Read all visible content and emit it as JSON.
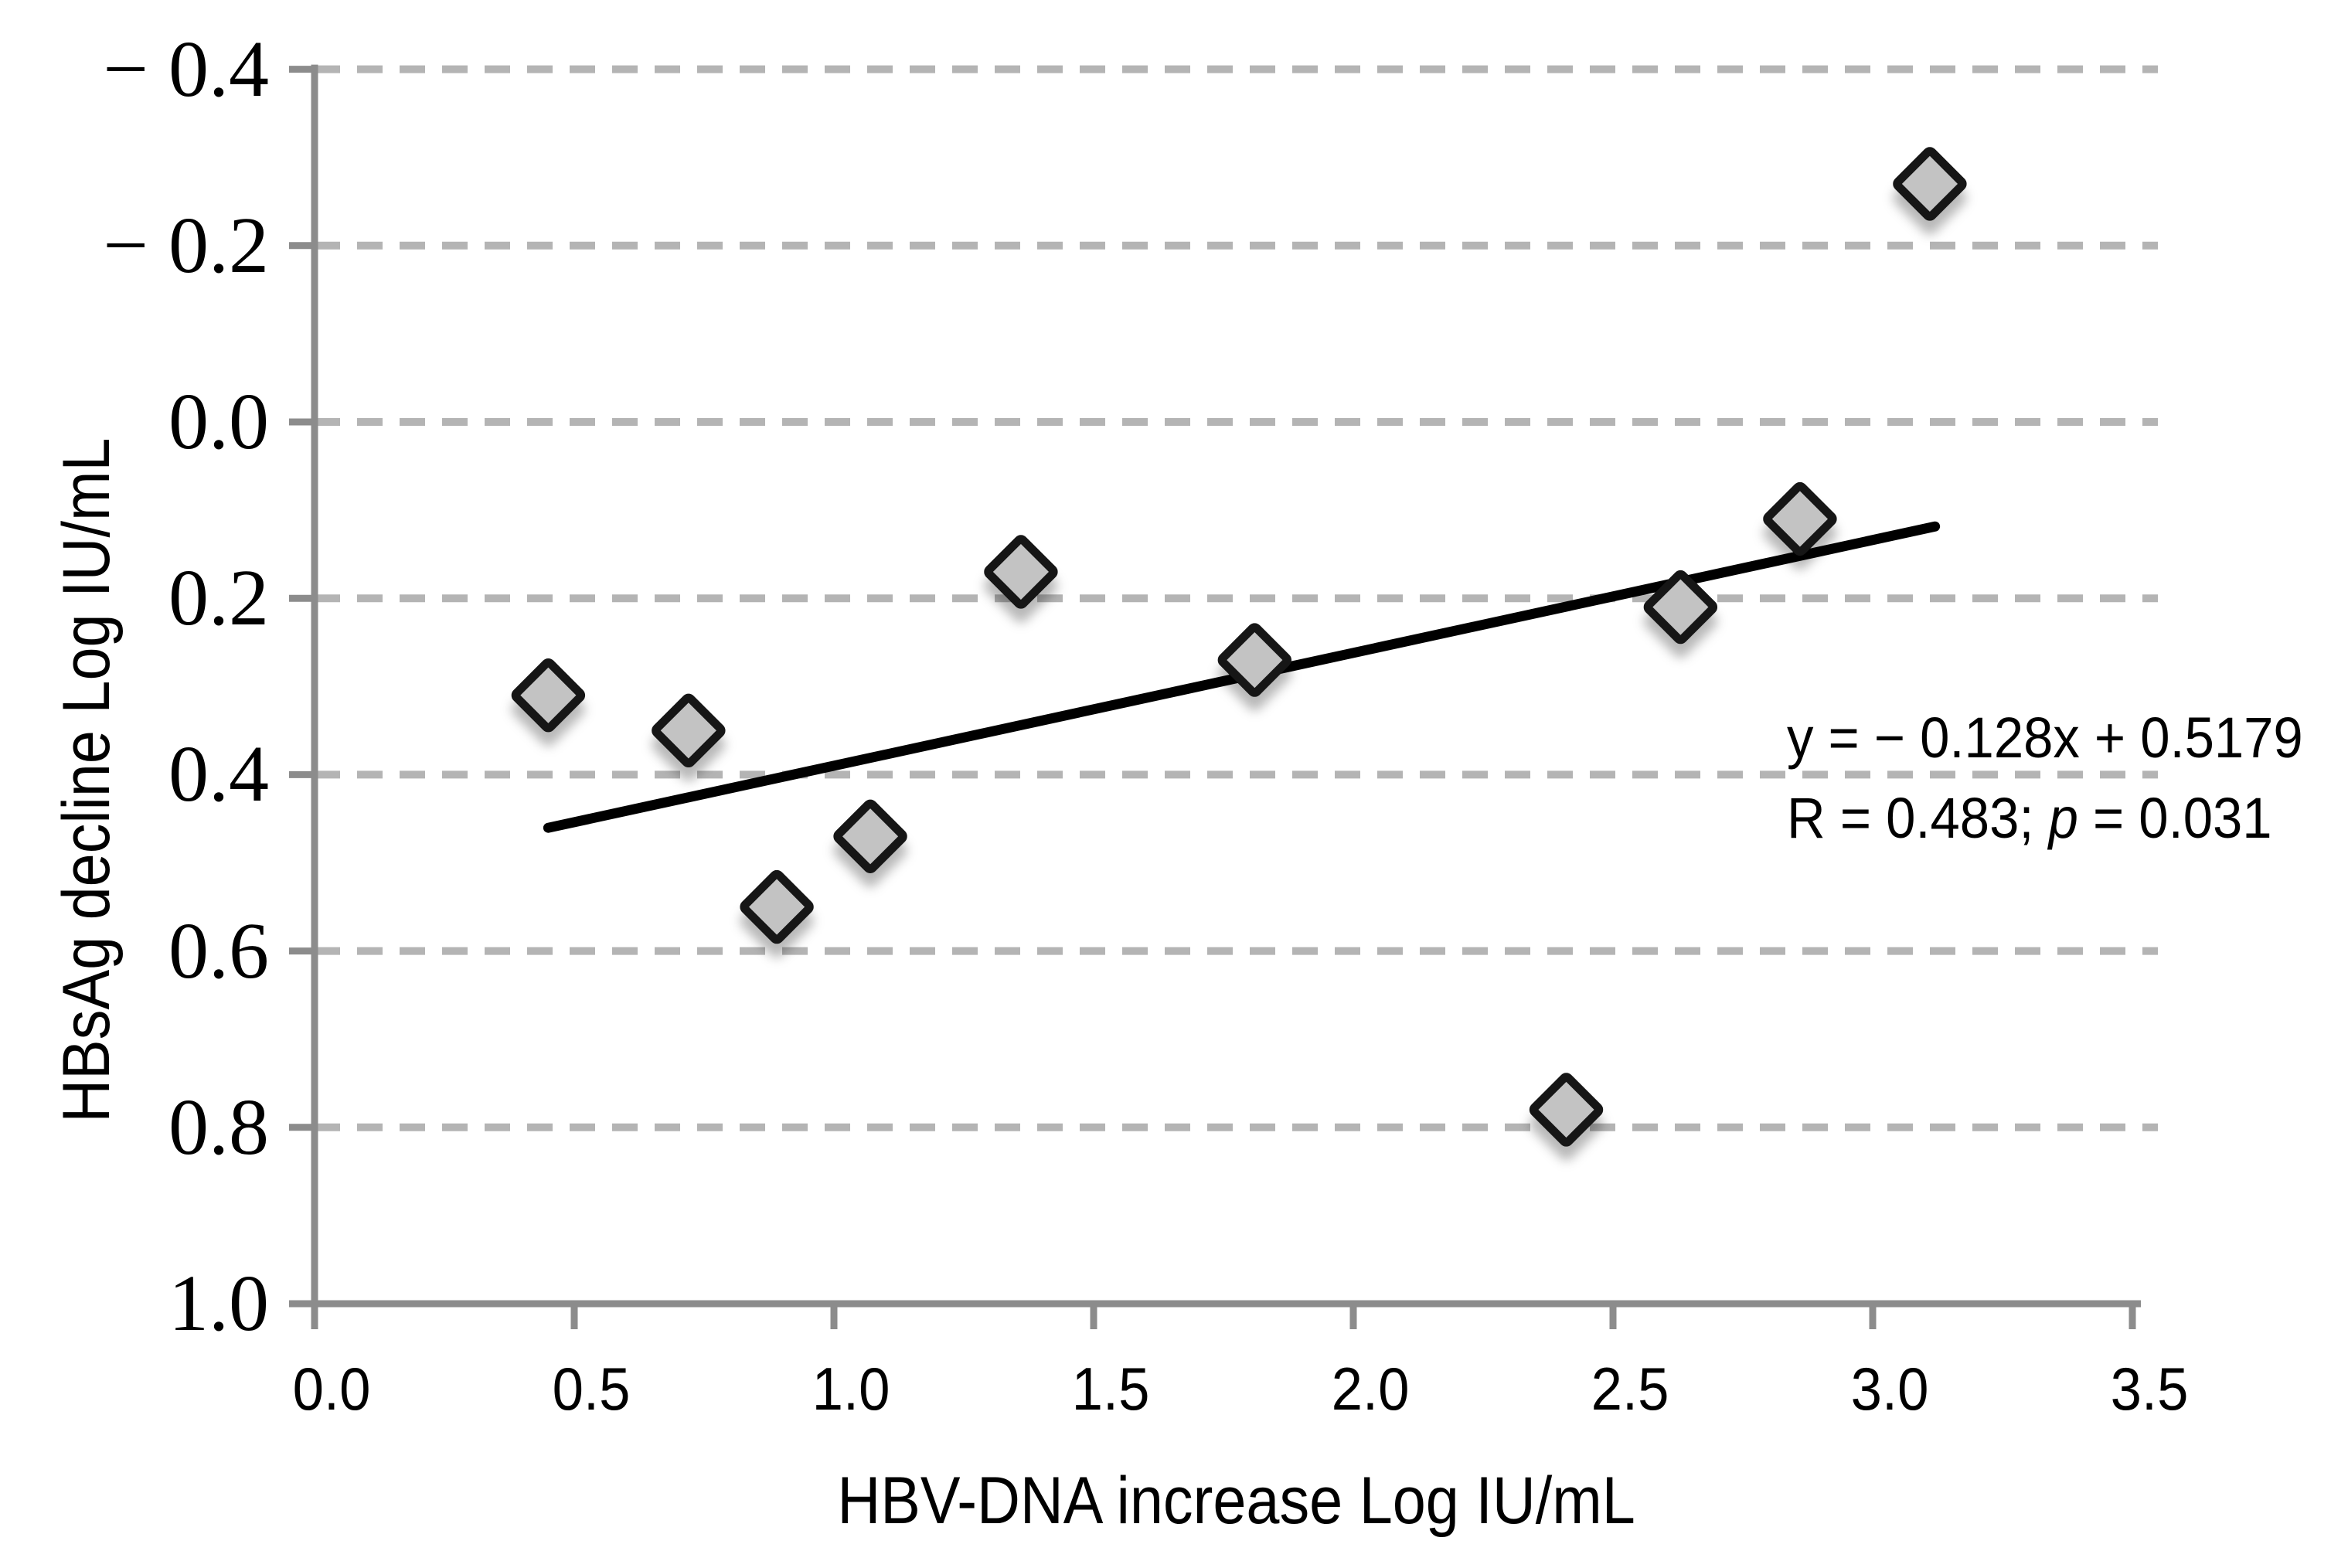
{
  "chart_data": {
    "type": "scatter",
    "xlabel": "HBV-DNA increase Log IU/mL",
    "ylabel": "HBsAg decline Log IU/mL",
    "x_ticks": [
      "0.0",
      "0.5",
      "1.0",
      "1.5",
      "2.0",
      "2.5",
      "3.0",
      "3.5"
    ],
    "y_ticks": [
      "− 0.4",
      "− 0.2",
      "0.0",
      "0.2",
      "0.4",
      "0.6",
      "0.8",
      "1.0"
    ],
    "xlim": [
      0.0,
      3.5
    ],
    "ylim": [
      -0.4,
      1.0
    ],
    "x_tick_step": 0.5,
    "y_tick_step": 0.2,
    "y_axis_inverted": true,
    "grid": "horizontal-dashed",
    "legend": "none",
    "points": [
      {
        "x": 0.45,
        "y": 0.31
      },
      {
        "x": 0.72,
        "y": 0.35
      },
      {
        "x": 0.89,
        "y": 0.55
      },
      {
        "x": 1.07,
        "y": 0.47
      },
      {
        "x": 1.36,
        "y": 0.17
      },
      {
        "x": 1.81,
        "y": 0.27
      },
      {
        "x": 2.41,
        "y": 0.78
      },
      {
        "x": 2.63,
        "y": 0.21
      },
      {
        "x": 2.86,
        "y": 0.11
      },
      {
        "x": 3.11,
        "y": -0.27
      }
    ],
    "trendline": {
      "slope": -0.128,
      "intercept": 0.5179,
      "x_start": 0.45,
      "x_end": 3.12
    },
    "annotation": {
      "line1": "y = − 0.128x + 0.5179",
      "line2_pre": "R = 0.483; ",
      "line2_italic": "p",
      "line2_post": " = 0.031"
    },
    "marker": {
      "shape": "diamond",
      "fill": "#c3c3c3",
      "stroke": "#121212"
    },
    "colors": {
      "gridline": "#b4b4b4",
      "axis": "#8c8c8c",
      "trend_line": "#000000",
      "text": "#000000"
    }
  }
}
